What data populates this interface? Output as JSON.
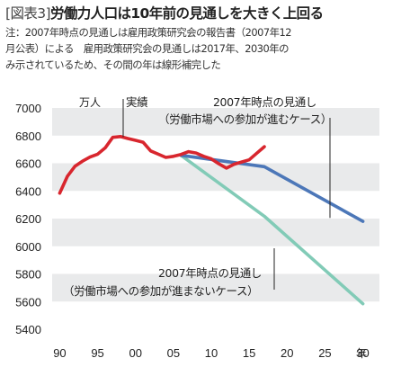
{
  "header": {
    "figure_label": "[図表3]",
    "title": "労働力人口は10年前の見通しを大きく上回る"
  },
  "note": {
    "lines": [
      "注：2007年時点の見通しは雇用政策研究会の報告書（2007年12",
      "月公表）による　雇用政策研究会の見通しは2017年、2030年の",
      "み示されているため、その間の年は線形補完した"
    ]
  },
  "chart_data": {
    "type": "line",
    "ylabel": "",
    "y_unit": "万人",
    "xlabel": "年",
    "x_tick_labels": [
      "90",
      "95",
      "00",
      "05",
      "10",
      "15",
      "20",
      "25",
      "30"
    ],
    "x_ticks": [
      1990,
      1995,
      2000,
      2005,
      2010,
      2015,
      2020,
      2025,
      2030
    ],
    "xlim": [
      1989,
      2031
    ],
    "y_ticks": [
      5400,
      5600,
      5800,
      6000,
      6200,
      6400,
      6600,
      6800,
      7000
    ],
    "ylim": [
      5400,
      7000
    ],
    "grid": "alternating horizontal bands",
    "series": [
      {
        "name": "実績",
        "color": "#d8262e",
        "x": [
          1990,
          1991,
          1992,
          1993,
          1994,
          1995,
          1996,
          1997,
          1998,
          1999,
          2000,
          2001,
          2002,
          2003,
          2004,
          2005,
          2006,
          2007,
          2008,
          2009,
          2010,
          2011,
          2012,
          2013,
          2014,
          2015,
          2016,
          2017
        ],
        "y": [
          6384,
          6505,
          6578,
          6615,
          6645,
          6666,
          6711,
          6787,
          6793,
          6779,
          6766,
          6752,
          6689,
          6666,
          6642,
          6650,
          6664,
          6684,
          6674,
          6650,
          6632,
          6596,
          6565,
          6593,
          6609,
          6625,
          6673,
          6720
        ]
      },
      {
        "name": "2007年時点の見通し（労働市場への参加が進むケース）",
        "color": "#4c77b8",
        "x": [
          2006,
          2017,
          2030
        ],
        "y": [
          6657,
          6575,
          6180
        ]
      },
      {
        "name": "2007年時点の見通し（労働市場への参加が進まないケース）",
        "color": "#82cbb7",
        "x": [
          2006,
          2017,
          2030
        ],
        "y": [
          6657,
          6217,
          5584
        ]
      }
    ],
    "annotations": [
      {
        "lines": [
          "実績"
        ],
        "target_series": 0
      },
      {
        "lines": [
          "2007年時点の見通し",
          "（労働市場への参加が進むケース）"
        ],
        "target_series": 1
      },
      {
        "lines": [
          "2007年時点の見通し",
          "（労働市場への参加が進まないケース）"
        ],
        "target_series": 2
      }
    ]
  }
}
